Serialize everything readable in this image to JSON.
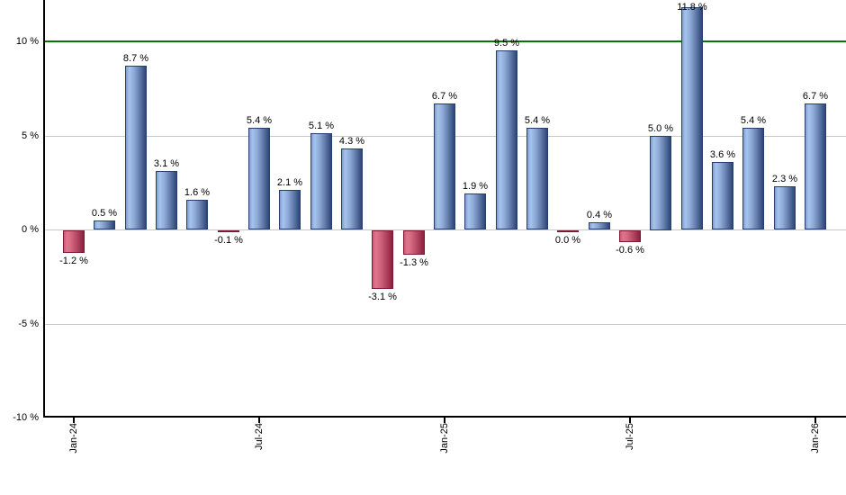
{
  "chart_data": {
    "type": "bar",
    "title": "",
    "unit": "%",
    "bars": [
      {
        "value": -1.2,
        "label": "-1.2 %",
        "color": "negative"
      },
      {
        "value": 0.5,
        "label": "0.5 %",
        "color": "positive"
      },
      {
        "value": 8.7,
        "label": "8.7 %",
        "color": "positive"
      },
      {
        "value": 3.1,
        "label": "3.1 %",
        "color": "positive"
      },
      {
        "value": 1.6,
        "label": "1.6 %",
        "color": "positive"
      },
      {
        "value": -0.1,
        "label": "-0.1 %",
        "color": "negative"
      },
      {
        "value": 5.4,
        "label": "5.4 %",
        "color": "positive"
      },
      {
        "value": 2.1,
        "label": "2.1 %",
        "color": "positive"
      },
      {
        "value": 5.1,
        "label": "5.1 %",
        "color": "positive"
      },
      {
        "value": 4.3,
        "label": "4.3 %",
        "color": "positive"
      },
      {
        "value": -3.1,
        "label": "-3.1 %",
        "color": "negative"
      },
      {
        "value": -1.3,
        "label": "-1.3 %",
        "color": "negative"
      },
      {
        "value": 6.7,
        "label": "6.7 %",
        "color": "positive"
      },
      {
        "value": 1.9,
        "label": "1.9 %",
        "color": "positive"
      },
      {
        "value": 9.5,
        "label": "9.5 %",
        "color": "positive"
      },
      {
        "value": 5.4,
        "label": "5.4 %",
        "color": "positive"
      },
      {
        "value": 0.0,
        "label": "0.0 %",
        "color": "negative"
      },
      {
        "value": 0.4,
        "label": "0.4 %",
        "color": "positive"
      },
      {
        "value": -0.6,
        "label": "-0.6 %",
        "color": "negative"
      },
      {
        "value": 5.0,
        "label": "5.0 %",
        "color": "positive"
      },
      {
        "value": 11.8,
        "label": "11.8 %",
        "color": "positive"
      },
      {
        "value": 3.6,
        "label": "3.6 %",
        "color": "positive"
      },
      {
        "value": 5.4,
        "label": "5.4 %",
        "color": "positive"
      },
      {
        "value": 2.3,
        "label": "2.3 %",
        "color": "positive"
      },
      {
        "value": 6.7,
        "label": "6.7 %",
        "color": "positive"
      }
    ],
    "x_axis": {
      "ticks": [
        {
          "bar_index": 0,
          "label": "Jan-24"
        },
        {
          "bar_index": 6,
          "label": "Jul-24"
        },
        {
          "bar_index": 12,
          "label": "Jan-25"
        },
        {
          "bar_index": 18,
          "label": "Jul-25"
        },
        {
          "bar_index": 24,
          "label": "Jan-26"
        }
      ]
    },
    "y_axis": {
      "ticks": [
        {
          "value": 10,
          "label": "10 %"
        },
        {
          "value": 5,
          "label": "5 %"
        },
        {
          "value": 0,
          "label": "0 %"
        },
        {
          "value": -5,
          "label": "-5 %"
        },
        {
          "value": -10,
          "label": "-10 %"
        }
      ],
      "range": [
        -10,
        12.2
      ]
    },
    "grid": true,
    "legend": "none",
    "threshold_line": {
      "value": 10,
      "color": "#007700"
    },
    "colors": {
      "positive_light": "#a6c3ee",
      "positive_dark": "#2e4577",
      "positive_border": "#26406e",
      "negative_light": "#e0758d",
      "negative_dark": "#8c1f3d",
      "negative_border": "#7d1835",
      "gridline": "#c8c8c8",
      "axis": "#000000",
      "text": "#000000",
      "background": "#ffffff"
    }
  }
}
